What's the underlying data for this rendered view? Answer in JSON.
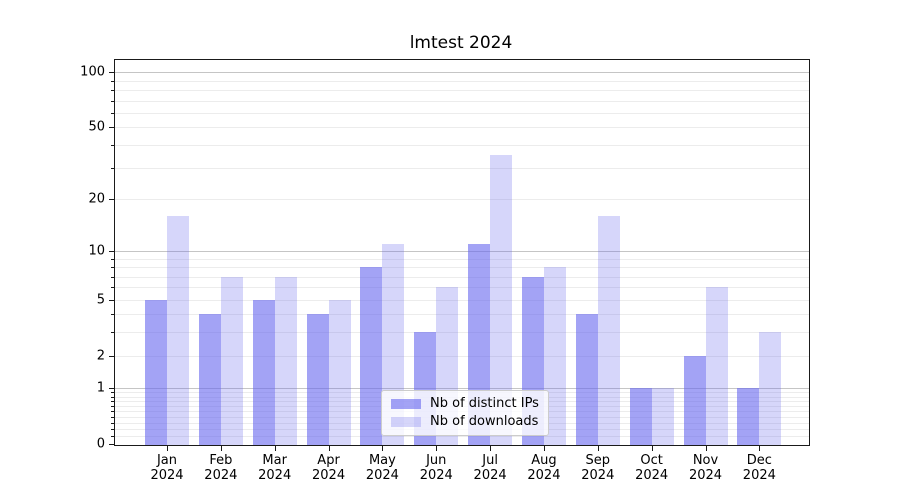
{
  "title": "lmtest 2024",
  "chart_data": {
    "type": "bar",
    "title": "lmtest 2024",
    "categories": [
      "Jan 2024",
      "Feb 2024",
      "Mar 2024",
      "Apr 2024",
      "May 2024",
      "Jun 2024",
      "Jul 2024",
      "Aug 2024",
      "Sep 2024",
      "Oct 2024",
      "Nov 2024",
      "Dec 2024"
    ],
    "series": [
      {
        "name": "Nb of distinct IPs",
        "color": "rgba(102,102,238,0.60)",
        "values": [
          5,
          4,
          5,
          4,
          8,
          3,
          11,
          7,
          4,
          1,
          2,
          1
        ]
      },
      {
        "name": "Nb of downloads",
        "color": "rgba(102,102,238,0.27)",
        "values": [
          16,
          7,
          7,
          5,
          11,
          6,
          35,
          8,
          16,
          1,
          6,
          3
        ]
      }
    ],
    "xlabel": "",
    "ylabel": "",
    "yscale": "log10(1+x)",
    "yticks": [
      0,
      1,
      2,
      5,
      10,
      20,
      50,
      100
    ],
    "ylim": [
      0,
      110
    ],
    "grid": "horizontal",
    "legend_position": "lower center"
  },
  "colors": {
    "bar_base": "#6666ee",
    "grid_major": "#c5c5c5",
    "grid_minor": "#ececec",
    "spine": "#1a1a1a",
    "background": "#ffffff"
  }
}
